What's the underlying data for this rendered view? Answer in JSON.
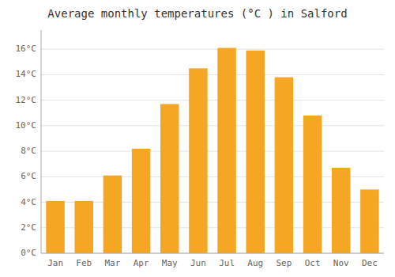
{
  "chart_data": {
    "type": "bar",
    "title": "Average monthly temperatures (°C ) in Salford",
    "categories": [
      "Jan",
      "Feb",
      "Mar",
      "Apr",
      "May",
      "Jun",
      "Jul",
      "Aug",
      "Sep",
      "Oct",
      "Nov",
      "Dec"
    ],
    "values": [
      4.1,
      4.1,
      6.1,
      8.2,
      11.7,
      14.5,
      16.1,
      15.9,
      13.8,
      10.8,
      6.7,
      5.0
    ],
    "color": "#F5A623",
    "ylim": [
      0,
      17.5
    ],
    "yticks": [
      {
        "value": 0,
        "label": "0°C"
      },
      {
        "value": 2,
        "label": "2°C"
      },
      {
        "value": 4,
        "label": "4°C"
      },
      {
        "value": 6,
        "label": "6°C"
      },
      {
        "value": 8,
        "label": "8°C"
      },
      {
        "value": 10,
        "label": "10°C"
      },
      {
        "value": 12,
        "label": "12°C"
      },
      {
        "value": 14,
        "label": "14°C"
      },
      {
        "value": 16,
        "label": "16°C"
      }
    ],
    "grid": true
  }
}
